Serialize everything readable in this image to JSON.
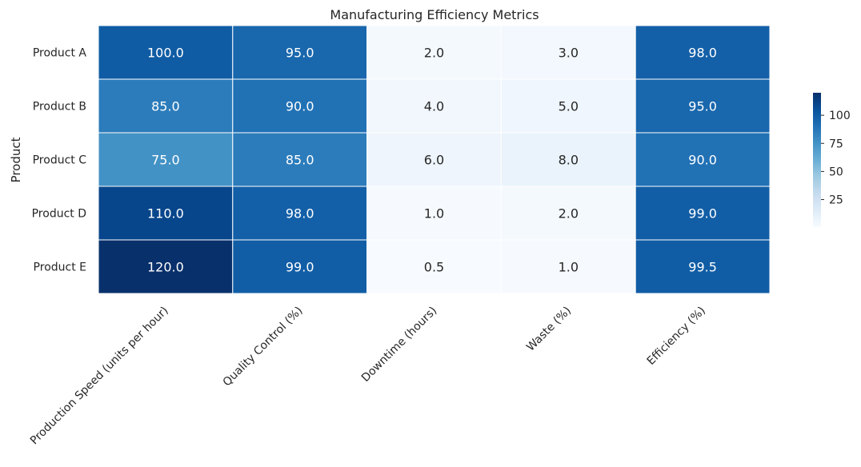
{
  "chart_data": {
    "type": "heatmap",
    "title": "Manufacturing Efficiency Metrics",
    "ylabel": "Product",
    "xlabel": "",
    "rows": [
      "Product A",
      "Product B",
      "Product C",
      "Product D",
      "Product E"
    ],
    "columns": [
      "Production Speed (units per hour)",
      "Quality Control (%)",
      "Downtime (hours)",
      "Waste (%)",
      "Efficiency (%)"
    ],
    "values": [
      [
        100.0,
        95.0,
        2.0,
        3.0,
        98.0
      ],
      [
        85.0,
        90.0,
        4.0,
        5.0,
        95.0
      ],
      [
        75.0,
        85.0,
        6.0,
        8.0,
        90.0
      ],
      [
        110.0,
        98.0,
        1.0,
        2.0,
        99.0
      ],
      [
        120.0,
        99.0,
        0.5,
        1.0,
        99.5
      ]
    ],
    "value_format": "1 decimal",
    "colormap": "Blues",
    "vmin": 0.5,
    "vmax": 120,
    "colorbar_ticks": [
      25,
      50,
      75,
      100
    ],
    "colorbar_placement": "right",
    "cell_separator_color": "#ffffff",
    "grid": false
  }
}
